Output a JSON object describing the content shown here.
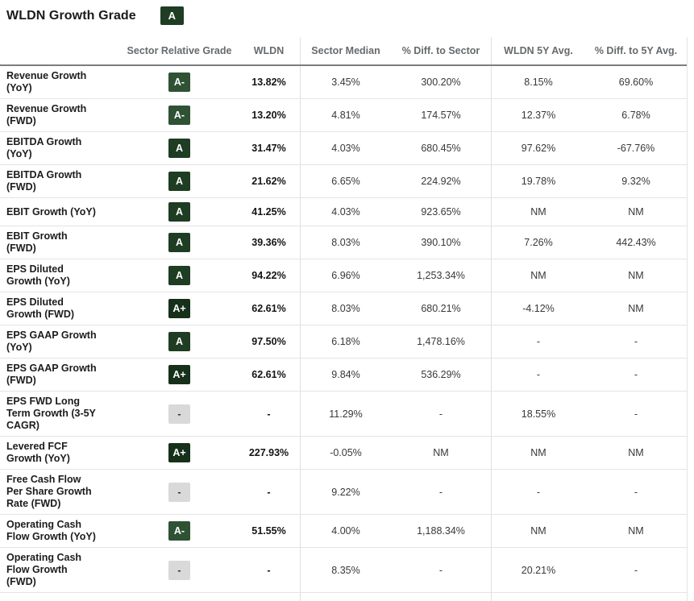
{
  "page": {
    "title": "WLDN Growth Grade",
    "title_grade": "A"
  },
  "colors": {
    "grade_a_plus": "#16301A",
    "grade_a": "#1E3D23",
    "grade_a_minus": "#2E5233",
    "grade_none_bg": "#D9D9D9",
    "grade_none_text": "#333333",
    "header_rule": "#7A7E80",
    "row_rule": "#E4E4E4"
  },
  "table": {
    "columns": [
      "",
      "Sector Relative Grade",
      "WLDN",
      "Sector Median",
      "% Diff. to Sector",
      "WLDN 5Y Avg.",
      "% Diff. to 5Y Avg."
    ],
    "rows": [
      {
        "label": "Revenue Growth\n(YoY)",
        "grade": "A-",
        "wldn": "13.82%",
        "sector_median": "3.45%",
        "diff_sector": "300.20%",
        "wldn_5y": "8.15%",
        "diff_5y": "69.60%"
      },
      {
        "label": "Revenue Growth\n(FWD)",
        "grade": "A-",
        "wldn": "13.20%",
        "sector_median": "4.81%",
        "diff_sector": "174.57%",
        "wldn_5y": "12.37%",
        "diff_5y": "6.78%"
      },
      {
        "label": "EBITDA Growth\n(YoY)",
        "grade": "A",
        "wldn": "31.47%",
        "sector_median": "4.03%",
        "diff_sector": "680.45%",
        "wldn_5y": "97.62%",
        "diff_5y": "-67.76%"
      },
      {
        "label": "EBITDA Growth\n(FWD)",
        "grade": "A",
        "wldn": "21.62%",
        "sector_median": "6.65%",
        "diff_sector": "224.92%",
        "wldn_5y": "19.78%",
        "diff_5y": "9.32%"
      },
      {
        "label": "EBIT Growth (YoY)",
        "grade": "A",
        "wldn": "41.25%",
        "sector_median": "4.03%",
        "diff_sector": "923.65%",
        "wldn_5y": "NM",
        "diff_5y": "NM"
      },
      {
        "label": "EBIT Growth\n(FWD)",
        "grade": "A",
        "wldn": "39.36%",
        "sector_median": "8.03%",
        "diff_sector": "390.10%",
        "wldn_5y": "7.26%",
        "diff_5y": "442.43%"
      },
      {
        "label": "EPS Diluted\nGrowth (YoY)",
        "grade": "A",
        "wldn": "94.22%",
        "sector_median": "6.96%",
        "diff_sector": "1,253.34%",
        "wldn_5y": "NM",
        "diff_5y": "NM"
      },
      {
        "label": "EPS Diluted\nGrowth (FWD)",
        "grade": "A+",
        "wldn": "62.61%",
        "sector_median": "8.03%",
        "diff_sector": "680.21%",
        "wldn_5y": "-4.12%",
        "diff_5y": "NM"
      },
      {
        "label": "EPS GAAP Growth\n(YoY)",
        "grade": "A",
        "wldn": "97.50%",
        "sector_median": "6.18%",
        "diff_sector": "1,478.16%",
        "wldn_5y": "-",
        "diff_5y": "-"
      },
      {
        "label": "EPS GAAP Growth\n(FWD)",
        "grade": "A+",
        "wldn": "62.61%",
        "sector_median": "9.84%",
        "diff_sector": "536.29%",
        "wldn_5y": "-",
        "diff_5y": "-"
      },
      {
        "label": "EPS FWD Long\nTerm Growth (3-5Y\nCAGR)",
        "grade": "-",
        "wldn": "-",
        "sector_median": "11.29%",
        "diff_sector": "-",
        "wldn_5y": "18.55%",
        "diff_5y": "-"
      },
      {
        "label": "Levered FCF\nGrowth (YoY)",
        "grade": "A+",
        "wldn": "227.93%",
        "sector_median": "-0.05%",
        "diff_sector": "NM",
        "wldn_5y": "NM",
        "diff_5y": "NM"
      },
      {
        "label": "Free Cash Flow\nPer Share Growth\nRate (FWD)",
        "grade": "-",
        "wldn": "-",
        "sector_median": "9.22%",
        "diff_sector": "-",
        "wldn_5y": "-",
        "diff_5y": "-"
      },
      {
        "label": "Operating Cash\nFlow Growth (YoY)",
        "grade": "A-",
        "wldn": "51.55%",
        "sector_median": "4.00%",
        "diff_sector": "1,188.34%",
        "wldn_5y": "NM",
        "diff_5y": "NM"
      },
      {
        "label": "Operating Cash\nFlow Growth\n(FWD)",
        "grade": "-",
        "wldn": "-",
        "sector_median": "8.35%",
        "diff_sector": "-",
        "wldn_5y": "20.21%",
        "diff_5y": "-"
      }
    ]
  }
}
